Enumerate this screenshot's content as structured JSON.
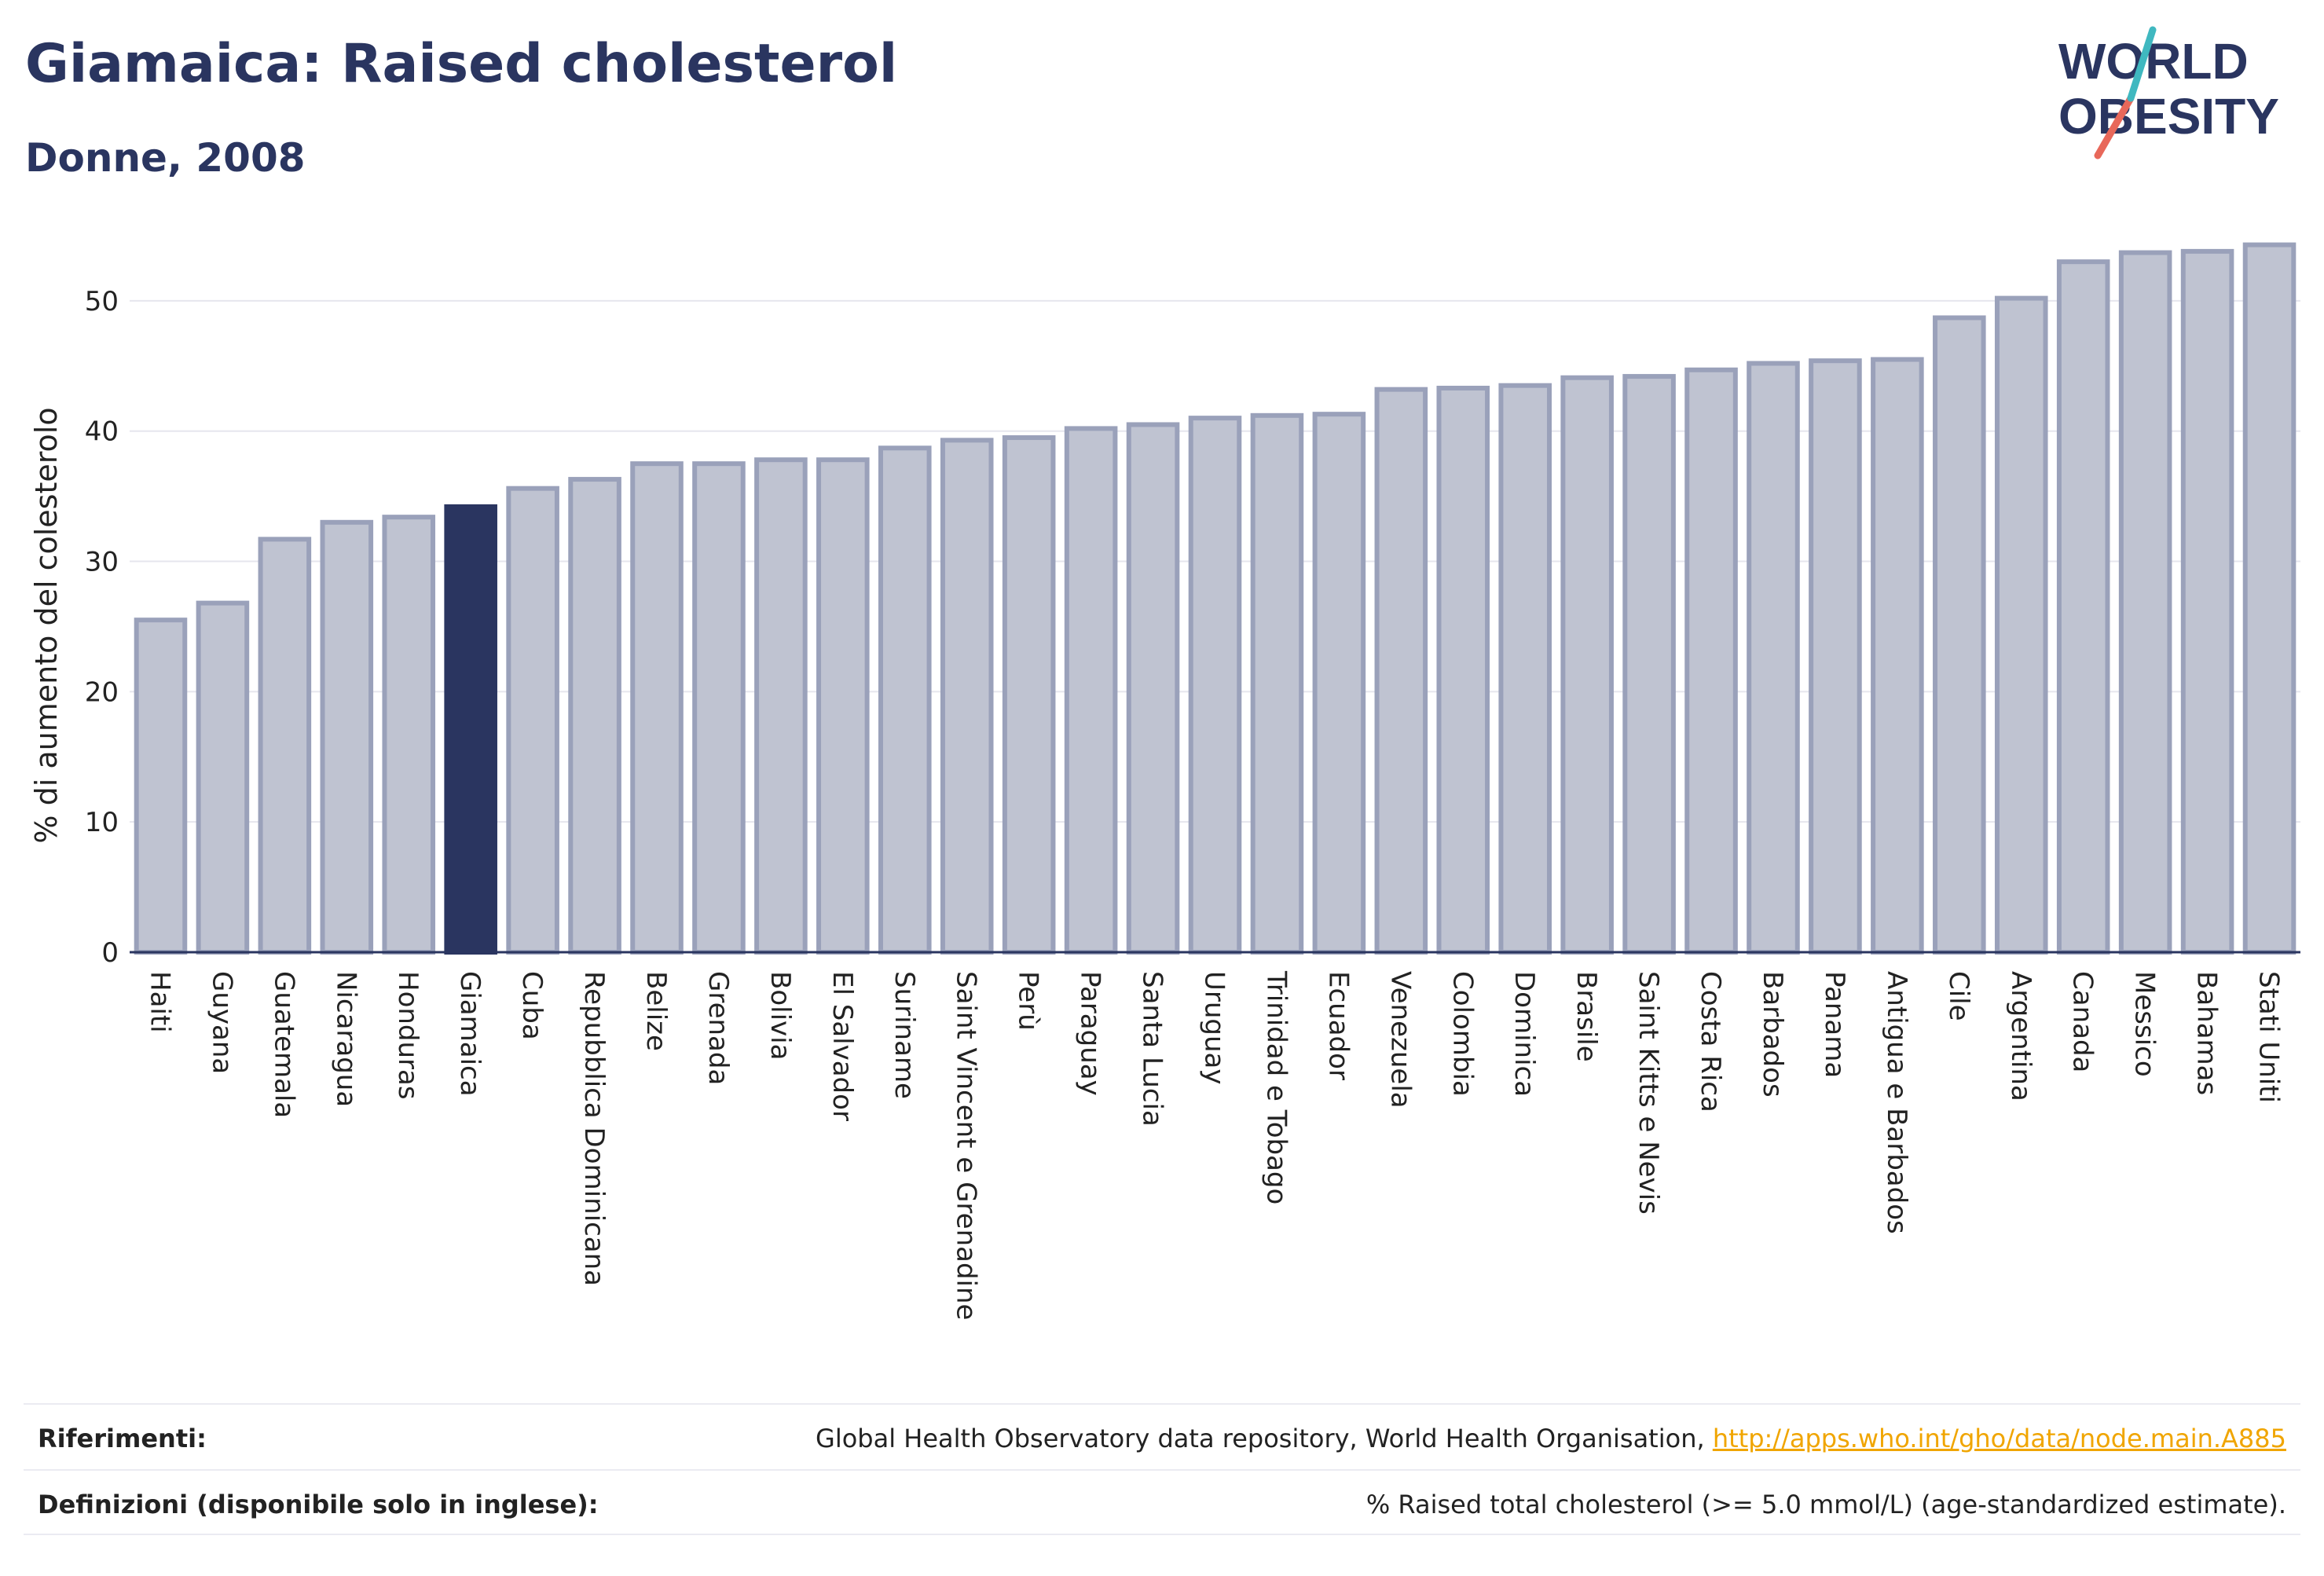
{
  "header": {
    "title": "Giamaica: Raised cholesterol",
    "subtitle": "Donne, 2008",
    "logo_line1": "WORLD",
    "logo_line2": "OBESITY"
  },
  "colors": {
    "bar": "#bfc3d1",
    "bar_stroke": "#9aa1ba",
    "highlight": "#2a3560",
    "grid": "#e6e6ee",
    "text": "#2a3560",
    "link": "#f0a500",
    "logo_teal": "#3fb8c0",
    "logo_red": "#e8685a"
  },
  "chart_data": {
    "type": "bar",
    "ylabel": "% di aumento del colesterolo",
    "ylim": [
      0,
      55
    ],
    "yticks": [
      0,
      10,
      20,
      30,
      40,
      50
    ],
    "grid": true,
    "highlight": "Giamaica",
    "categories": [
      "Haiti",
      "Guyana",
      "Guatemala",
      "Nicaragua",
      "Honduras",
      "Giamaica",
      "Cuba",
      "Repubblica Dominicana",
      "Belize",
      "Grenada",
      "Bolivia",
      "El Salvador",
      "Suriname",
      "Saint Vincent e Grenadine",
      "Perù",
      "Paraguay",
      "Santa Lucia",
      "Uruguay",
      "Trinidad e Tobago",
      "Ecuador",
      "Venezuela",
      "Colombia",
      "Dominica",
      "Brasile",
      "Saint Kitts e Nevis",
      "Costa Rica",
      "Barbados",
      "Panama",
      "Antigua e Barbados",
      "Cile",
      "Argentina",
      "Canada",
      "Messico",
      "Bahamas",
      "Stati Uniti"
    ],
    "values": [
      25.5,
      26.8,
      31.7,
      33.0,
      33.4,
      34.2,
      35.6,
      36.3,
      37.5,
      37.5,
      37.8,
      37.8,
      38.7,
      39.3,
      39.5,
      40.2,
      40.5,
      41.0,
      41.2,
      41.3,
      43.2,
      43.3,
      43.5,
      44.1,
      44.2,
      44.7,
      45.2,
      45.4,
      45.5,
      48.7,
      50.2,
      53.0,
      53.7,
      53.8,
      54.3
    ]
  },
  "references": {
    "label": "Riferimenti:",
    "text": "Global Health Observatory data repository, World Health Organisation, ",
    "link": "http://apps.who.int/gho/data/node.main.A885"
  },
  "definitions": {
    "label": "Definizioni (disponibile solo in inglese):",
    "text": "% Raised total cholesterol (>= 5.0 mmol/L) (age-standardized estimate)."
  }
}
